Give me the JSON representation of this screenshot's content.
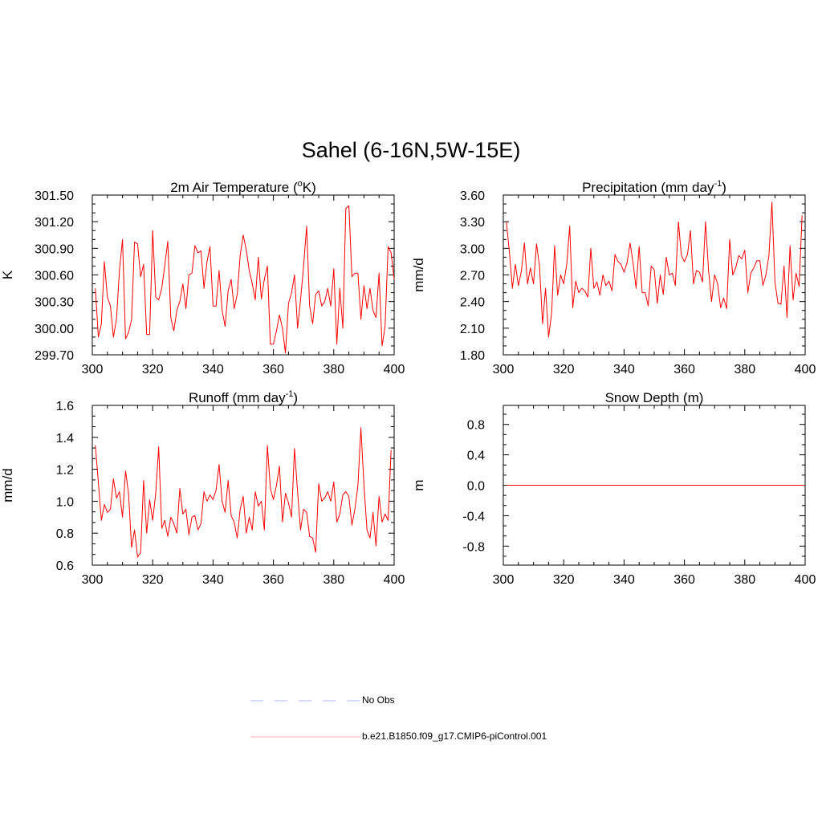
{
  "main_title": "Sahel (6-16N,5W-15E)",
  "colors": {
    "model": "#ff0000",
    "obs": "#b0b0ff",
    "axis": "#000000"
  },
  "legend": {
    "obs_label": "No Obs",
    "model_label": "b.e21.B1850.f09_g17.CMIP6-piControl.001"
  },
  "chart_data": [
    {
      "type": "line",
      "title": "2m Air Temperature (",
      "title_super": "o",
      "title_suffix": "K)",
      "ylabel": "K",
      "xlim": [
        300,
        400
      ],
      "ylim": [
        299.7,
        301.5
      ],
      "yticks": [
        299.7,
        300.0,
        300.3,
        300.6,
        300.9,
        301.2,
        301.5
      ],
      "ytick_labels": [
        "299.70",
        "300.00",
        "300.30",
        "300.60",
        "300.90",
        "301.20",
        "301.50"
      ],
      "xticks": [
        300,
        320,
        340,
        360,
        380,
        400
      ],
      "xtick_labels": [
        "300",
        "320",
        "340",
        "360",
        "380",
        "400"
      ],
      "series": [
        {
          "name": "b.e21.B1850.f09_g17.CMIP6-piControl.001",
          "x_start": 301,
          "values": [
            300.45,
            299.9,
            300.05,
            300.75,
            300.35,
            300.25,
            299.9,
            300.1,
            300.65,
            301.0,
            299.88,
            299.95,
            300.1,
            300.97,
            300.95,
            300.58,
            300.72,
            299.93,
            299.93,
            301.1,
            300.35,
            300.32,
            300.45,
            300.7,
            300.98,
            300.12,
            299.97,
            300.2,
            300.3,
            300.5,
            300.22,
            300.6,
            300.62,
            300.93,
            300.85,
            300.87,
            300.45,
            300.75,
            300.92,
            300.25,
            300.25,
            300.65,
            300.2,
            300.02,
            300.42,
            300.55,
            300.22,
            300.38,
            300.82,
            301.05,
            300.88,
            300.65,
            300.5,
            300.32,
            300.8,
            300.33,
            300.55,
            300.7,
            299.82,
            299.82,
            299.97,
            300.15,
            300.0,
            299.72,
            300.28,
            300.4,
            300.6,
            300.0,
            300.32,
            300.7,
            301.15,
            300.25,
            300.05,
            300.38,
            300.42,
            300.25,
            300.3,
            300.45,
            300.25,
            300.67,
            299.82,
            300.45,
            300.0,
            301.35,
            301.38,
            300.58,
            300.62,
            300.62,
            300.1,
            300.48,
            300.22,
            300.45,
            300.2,
            300.12,
            300.62,
            299.8,
            300.02,
            300.92,
            300.85,
            300.55
          ]
        }
      ]
    },
    {
      "type": "line",
      "title": "Precipitation (mm day",
      "title_super": "-1",
      "title_suffix": ")",
      "ylabel": "mm/d",
      "xlim": [
        300,
        400
      ],
      "ylim": [
        1.8,
        3.6
      ],
      "yticks": [
        1.8,
        2.1,
        2.4,
        2.7,
        3.0,
        3.3,
        3.6
      ],
      "ytick_labels": [
        "1.80",
        "2.10",
        "2.40",
        "2.70",
        "3.00",
        "3.30",
        "3.60"
      ],
      "xticks": [
        300,
        320,
        340,
        360,
        380,
        400
      ],
      "xtick_labels": [
        "300",
        "320",
        "340",
        "360",
        "380",
        "400"
      ],
      "series": [
        {
          "name": "b.e21.B1850.f09_g17.CMIP6-piControl.001",
          "x_start": 301,
          "values": [
            3.3,
            2.97,
            2.55,
            2.82,
            2.58,
            2.75,
            3.06,
            2.6,
            2.78,
            2.6,
            3.05,
            2.8,
            2.15,
            2.55,
            2.0,
            2.27,
            3.03,
            2.47,
            2.7,
            2.6,
            2.82,
            3.25,
            2.33,
            2.63,
            2.5,
            2.55,
            2.52,
            2.45,
            3.0,
            2.55,
            2.62,
            2.47,
            2.7,
            2.58,
            2.63,
            2.52,
            2.93,
            2.85,
            2.82,
            2.73,
            2.84,
            3.06,
            2.83,
            2.55,
            3.02,
            2.5,
            2.5,
            2.35,
            2.8,
            2.76,
            2.38,
            2.7,
            2.48,
            2.9,
            2.7,
            2.72,
            2.58,
            3.3,
            2.92,
            2.85,
            2.93,
            3.2,
            2.6,
            2.75,
            2.73,
            2.62,
            3.3,
            2.75,
            2.4,
            2.7,
            2.6,
            2.33,
            2.44,
            2.32,
            3.1,
            2.7,
            2.78,
            2.92,
            2.88,
            2.98,
            2.5,
            2.72,
            2.78,
            2.86,
            2.86,
            2.58,
            2.7,
            2.92,
            3.52,
            2.62,
            2.38,
            2.37,
            2.8,
            2.22,
            3.03,
            2.42,
            2.72,
            2.57,
            3.37
          ]
        }
      ]
    },
    {
      "type": "line",
      "title": "Runoff (mm day",
      "title_super": "-1",
      "title_suffix": ")",
      "ylabel": "mm/d",
      "xlim": [
        300,
        400
      ],
      "ylim": [
        0.6,
        1.6
      ],
      "yticks": [
        0.6,
        0.8,
        1.0,
        1.2,
        1.4,
        1.6
      ],
      "ytick_labels": [
        "0.6",
        "0.8",
        "1.0",
        "1.2",
        "1.4",
        "1.6"
      ],
      "xticks": [
        300,
        320,
        340,
        360,
        380,
        400
      ],
      "xtick_labels": [
        "300",
        "320",
        "340",
        "360",
        "380",
        "400"
      ],
      "series": [
        {
          "name": "b.e21.B1850.f09_g17.CMIP6-piControl.001",
          "x_start": 301,
          "values": [
            1.35,
            1.12,
            0.88,
            0.98,
            0.93,
            0.95,
            1.14,
            1.02,
            1.06,
            0.9,
            1.19,
            1.05,
            0.71,
            0.82,
            0.65,
            0.68,
            1.13,
            0.8,
            1.01,
            0.88,
            1.05,
            1.34,
            0.83,
            0.88,
            0.78,
            0.9,
            0.86,
            0.8,
            1.08,
            0.92,
            0.95,
            0.79,
            0.9,
            0.91,
            0.82,
            0.86,
            1.06,
            1.0,
            1.04,
            1.01,
            1.07,
            1.23,
            1.0,
            0.93,
            1.13,
            0.91,
            0.87,
            0.77,
            0.95,
            1.03,
            0.8,
            0.9,
            0.82,
            1.06,
            0.97,
            1.0,
            0.82,
            1.35,
            1.08,
            1.01,
            1.1,
            1.22,
            0.87,
            1.05,
            0.99,
            0.9,
            1.33,
            1.06,
            0.82,
            0.95,
            0.93,
            0.78,
            0.77,
            0.68,
            1.11,
            1.0,
            1.02,
            1.06,
            1.0,
            1.12,
            0.87,
            0.92,
            1.04,
            1.06,
            1.03,
            0.85,
            0.95,
            1.1,
            1.46,
            1.1,
            0.82,
            0.77,
            0.93,
            0.72,
            1.03,
            0.87,
            0.92,
            0.88,
            1.32
          ]
        }
      ]
    },
    {
      "type": "line",
      "title": "Snow Depth (m)",
      "title_super": "",
      "title_suffix": "",
      "ylabel": "m",
      "xlim": [
        300,
        400
      ],
      "ylim": [
        -1.05,
        1.05
      ],
      "yticks": [
        -0.8,
        -0.4,
        0.0,
        0.4,
        0.8
      ],
      "ytick_labels": [
        "-0.8",
        "-0.4",
        "0.0",
        "0.4",
        "0.8"
      ],
      "xticks": [
        300,
        320,
        340,
        360,
        380,
        400
      ],
      "xtick_labels": [
        "300",
        "320",
        "340",
        "360",
        "380",
        "400"
      ],
      "series": [
        {
          "name": "b.e21.B1850.f09_g17.CMIP6-piControl.001",
          "x_start": 301,
          "values": [
            0,
            0,
            0,
            0,
            0,
            0,
            0,
            0,
            0,
            0,
            0,
            0,
            0,
            0,
            0,
            0,
            0,
            0,
            0,
            0,
            0,
            0,
            0,
            0,
            0,
            0,
            0,
            0,
            0,
            0,
            0,
            0,
            0,
            0,
            0,
            0,
            0,
            0,
            0,
            0,
            0,
            0,
            0,
            0,
            0,
            0,
            0,
            0,
            0,
            0,
            0,
            0,
            0,
            0,
            0,
            0,
            0,
            0,
            0,
            0,
            0,
            0,
            0,
            0,
            0,
            0,
            0,
            0,
            0,
            0,
            0,
            0,
            0,
            0,
            0,
            0,
            0,
            0,
            0,
            0,
            0,
            0,
            0,
            0,
            0,
            0,
            0,
            0,
            0,
            0,
            0,
            0,
            0,
            0,
            0,
            0,
            0,
            0,
            0,
            0
          ]
        }
      ]
    }
  ]
}
